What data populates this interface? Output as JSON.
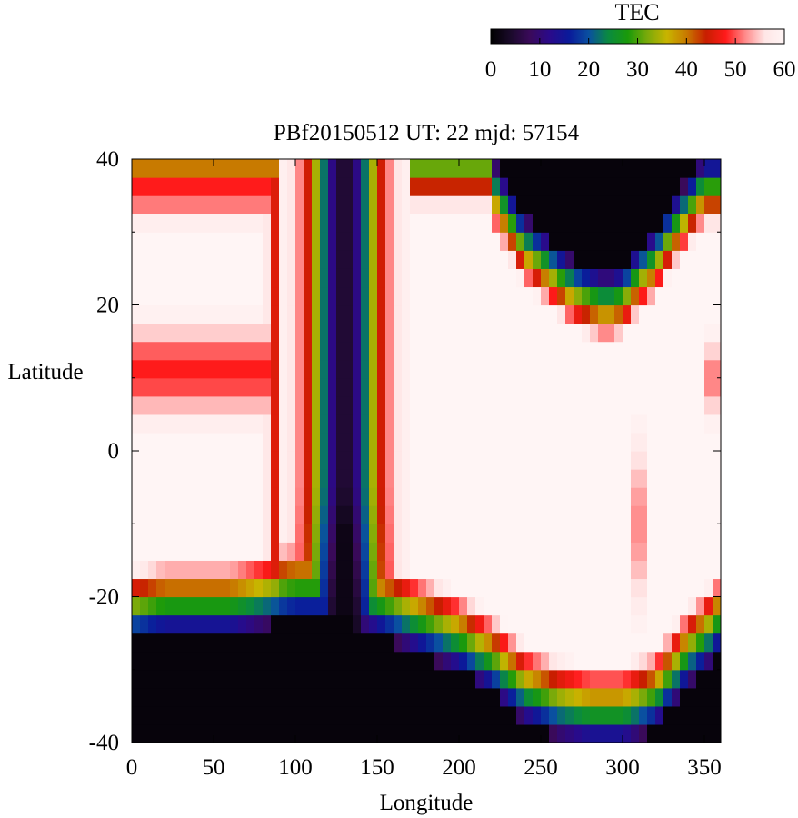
{
  "chart_data": {
    "type": "heatmap",
    "title": "PBf20150512  UT: 22  mjd: 57154",
    "xlabel": "Longitude",
    "ylabel": "Latitude",
    "xlim": [
      0,
      360
    ],
    "ylim": [
      -40,
      40
    ],
    "x_ticks": [
      0,
      50,
      100,
      150,
      200,
      250,
      300,
      350
    ],
    "x_tick_labels": [
      "0",
      "50",
      "100",
      "150",
      "200",
      "250",
      "300",
      "350"
    ],
    "y_ticks": [
      -40,
      -20,
      0,
      20,
      40
    ],
    "y_tick_labels": [
      "-40",
      "-20",
      "0",
      "20",
      "40"
    ],
    "grid": false,
    "colorbar": {
      "label": "TEC",
      "min": 0,
      "max": 60,
      "placement": "top-right",
      "ticks": [
        0,
        10,
        20,
        30,
        40,
        50,
        60
      ],
      "tick_labels": [
        "0",
        "10",
        "20",
        "30",
        "40",
        "50",
        "60"
      ],
      "colormap": [
        "#000000",
        "#1a0a2a",
        "#3a0a5a",
        "#2a0a8a",
        "#0a1a9a",
        "#0a50a0",
        "#0a8a40",
        "#1a9a0a",
        "#7aaa0a",
        "#c8b400",
        "#c87a00",
        "#c81e00",
        "#ff1a1a",
        "#ff8a8a",
        "#ffe6e6",
        "#fff5f5"
      ]
    },
    "grid_spacing": {
      "dlon": 5,
      "dlat": 2.5
    },
    "dark_boundary": {
      "north_lon": [
        220,
        230,
        240,
        250,
        260,
        270,
        280,
        290,
        300,
        310,
        320,
        330,
        340,
        350,
        360
      ],
      "north_lat": [
        40,
        36,
        32,
        30,
        28,
        26,
        25,
        24,
        25,
        28,
        30,
        34,
        37,
        40,
        40
      ],
      "south_lon": [
        0,
        20,
        40,
        60,
        80,
        100,
        120,
        140,
        160,
        180,
        200,
        220,
        240,
        260,
        280,
        300,
        320,
        340,
        350,
        360
      ],
      "south_lat": [
        -26,
        -25,
        -25,
        -25,
        -24,
        -23,
        -23,
        -24,
        -26,
        -28,
        -30,
        -33,
        -37,
        -39,
        -40,
        -40,
        -38,
        -32,
        -30,
        -27
      ]
    },
    "features": {
      "trough_center_lon": 130,
      "trough_sigma_lon": 14,
      "east_crest_lon": 225,
      "west_crests": [
        {
          "lat": 11,
          "sigma_lat": 4.5,
          "tec": 48
        },
        {
          "lat": 36,
          "sigma_lat": 3,
          "tec": 48
        }
      ],
      "hot_spots": [
        {
          "lon": 310,
          "lat": -10,
          "sigma_lon": 4,
          "sigma_lat": 9,
          "tec": 50
        },
        {
          "lon": 355,
          "lat": 10,
          "sigma_lon": 3,
          "sigma_lat": 4,
          "tec": 47
        }
      ]
    }
  }
}
